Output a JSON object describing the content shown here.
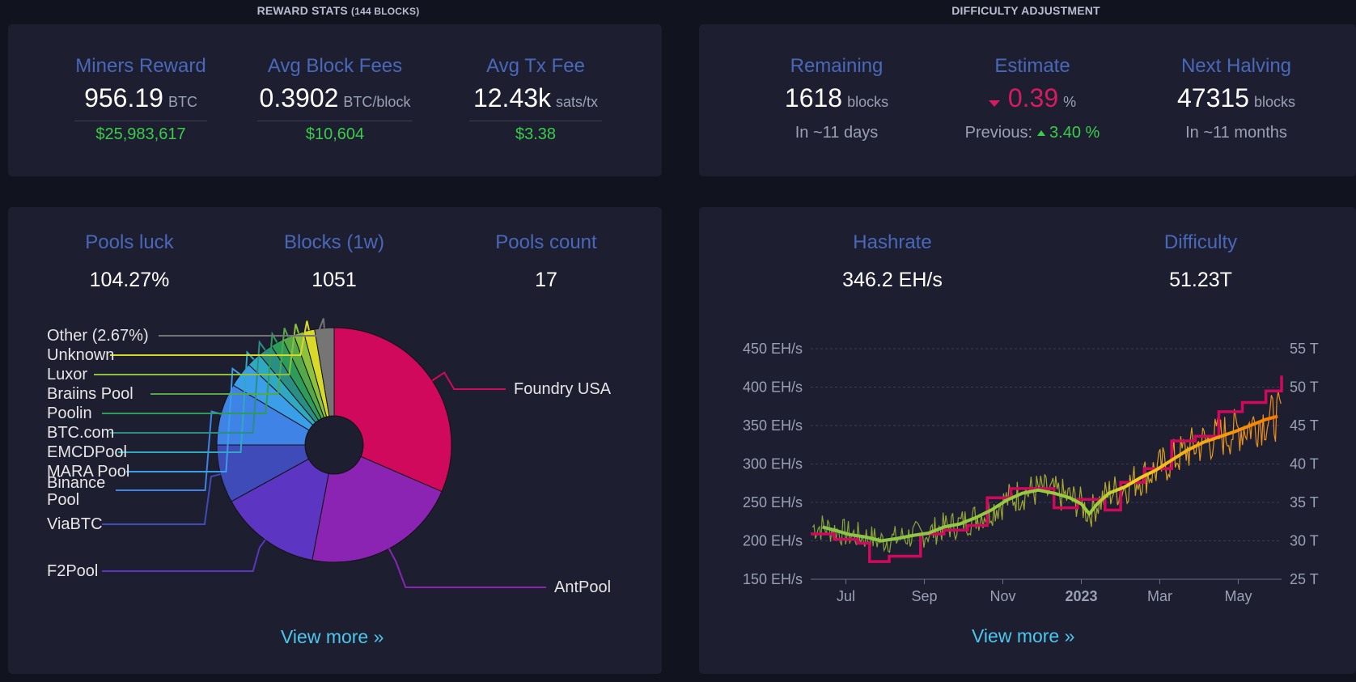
{
  "reward_stats": {
    "title": "REWARD STATS",
    "subtitle": "(144 BLOCKS)",
    "miners_reward": {
      "label": "Miners Reward",
      "value": "956.19",
      "unit": "BTC",
      "fiat": "$25,983,617"
    },
    "avg_block_fees": {
      "label": "Avg Block Fees",
      "value": "0.3902",
      "unit": "BTC/block",
      "fiat": "$10,604"
    },
    "avg_tx_fee": {
      "label": "Avg Tx Fee",
      "value": "12.43k",
      "unit": "sats/tx",
      "fiat": "$3.38"
    }
  },
  "difficulty_adjustment": {
    "title": "DIFFICULTY ADJUSTMENT",
    "remaining": {
      "label": "Remaining",
      "value": "1618",
      "unit": "blocks",
      "sub": "In ~11 days"
    },
    "estimate": {
      "label": "Estimate",
      "value": "0.39",
      "unit": "%",
      "previous_label": "Previous:",
      "previous_value": "3.40",
      "previous_unit": "%"
    },
    "next_halving": {
      "label": "Next Halving",
      "value": "47315",
      "unit": "blocks",
      "sub": "In ~11 months"
    }
  },
  "pools": {
    "luck": {
      "label": "Pools luck",
      "value": "104.27%"
    },
    "blocks": {
      "label": "Blocks (1w)",
      "value": "1051"
    },
    "count": {
      "label": "Pools count",
      "value": "17"
    },
    "view_more": "View more »"
  },
  "mining": {
    "hashrate": {
      "label": "Hashrate",
      "value": "346.2 EH/s"
    },
    "difficulty": {
      "label": "Difficulty",
      "value": "51.23T"
    },
    "view_more": "View more »"
  },
  "chart_data": [
    {
      "type": "pie",
      "variant": "donut",
      "slices": [
        {
          "name": "Foundry USA",
          "percent": 31.5,
          "color": "#d1095d"
        },
        {
          "name": "AntPool",
          "percent": 21.5,
          "color": "#8b24b3"
        },
        {
          "name": "F2Pool",
          "percent": 14.0,
          "color": "#5c35c2"
        },
        {
          "name": "ViaBTC",
          "percent": 8.0,
          "color": "#3f4bb8"
        },
        {
          "name": "Binance Pool",
          "percent": 8.5,
          "color": "#3f83e6"
        },
        {
          "name": "MARA Pool",
          "percent": 3.5,
          "color": "#3a9ee9"
        },
        {
          "name": "EMCDPool",
          "percent": 2.0,
          "color": "#2fa9c2"
        },
        {
          "name": "BTC.com",
          "percent": 2.0,
          "color": "#2a8f82"
        },
        {
          "name": "Poolin",
          "percent": 1.8,
          "color": "#2d9c5a"
        },
        {
          "name": "Braiins Pool",
          "percent": 1.6,
          "color": "#54a84a"
        },
        {
          "name": "Luxor",
          "percent": 1.4,
          "color": "#8dc13d"
        },
        {
          "name": "Unknown",
          "percent": 1.53,
          "color": "#d9d92a"
        },
        {
          "name": "Other (2.67%)",
          "percent": 2.67,
          "color": "#757575"
        }
      ]
    },
    {
      "type": "line",
      "x_ticks": [
        "Jul",
        "Sep",
        "Nov",
        "2023",
        "Mar",
        "May"
      ],
      "y_left_ticks": [
        "150 EH/s",
        "200 EH/s",
        "250 EH/s",
        "300 EH/s",
        "350 EH/s",
        "400 EH/s",
        "450 EH/s"
      ],
      "y_left_range": [
        150,
        450
      ],
      "y_right_ticks": [
        "25 T",
        "30 T",
        "35 T",
        "40 T",
        "45 T",
        "50 T",
        "55 T"
      ],
      "y_right_range": [
        25,
        55
      ],
      "grid": true,
      "x_range": [
        0,
        12
      ],
      "series": [
        {
          "axis": "left",
          "values": [
            [
              0.3,
              218
            ],
            [
              0.6,
              214
            ],
            [
              1.0,
              208
            ],
            [
              1.4,
              205
            ],
            [
              1.8,
              200
            ],
            [
              2.2,
              203
            ],
            [
              2.6,
              207
            ],
            [
              3.0,
              210
            ],
            [
              3.4,
              218
            ],
            [
              3.8,
              222
            ],
            [
              4.2,
              230
            ],
            [
              4.6,
              240
            ],
            [
              5.0,
              253
            ],
            [
              5.4,
              262
            ],
            [
              5.8,
              266
            ],
            [
              6.2,
              262
            ],
            [
              6.6,
              256
            ],
            [
              6.9,
              248
            ],
            [
              7.1,
              235
            ],
            [
              7.3,
              248
            ],
            [
              7.6,
              262
            ],
            [
              8.0,
              270
            ],
            [
              8.4,
              282
            ],
            [
              8.8,
              292
            ],
            [
              9.2,
              305
            ],
            [
              9.6,
              318
            ],
            [
              10.0,
              328
            ],
            [
              10.4,
              335
            ],
            [
              10.8,
              342
            ],
            [
              11.2,
              350
            ],
            [
              11.6,
              358
            ],
            [
              11.9,
              362
            ]
          ]
        },
        {
          "axis": "right",
          "values": [
            [
              0.0,
              30.9
            ],
            [
              0.6,
              30.9
            ],
            [
              0.6,
              30.2
            ],
            [
              1.2,
              30.2
            ],
            [
              1.2,
              29.7
            ],
            [
              1.5,
              29.7
            ],
            [
              1.5,
              27.3
            ],
            [
              2.0,
              27.3
            ],
            [
              2.0,
              28.0
            ],
            [
              2.8,
              28.0
            ],
            [
              2.8,
              30.9
            ],
            [
              3.4,
              30.9
            ],
            [
              3.4,
              31.4
            ],
            [
              4.0,
              31.4
            ],
            [
              4.0,
              32.0
            ],
            [
              4.5,
              32.0
            ],
            [
              4.5,
              35.6
            ],
            [
              5.1,
              35.6
            ],
            [
              5.1,
              36.8
            ],
            [
              6.2,
              36.8
            ],
            [
              6.2,
              34.3
            ],
            [
              6.8,
              34.3
            ],
            [
              6.8,
              35.4
            ],
            [
              7.5,
              35.4
            ],
            [
              7.5,
              34.0
            ],
            [
              7.9,
              34.0
            ],
            [
              7.9,
              37.6
            ],
            [
              8.5,
              37.6
            ],
            [
              8.5,
              39.4
            ],
            [
              9.2,
              39.4
            ],
            [
              9.2,
              43.0
            ],
            [
              9.8,
              43.0
            ],
            [
              9.8,
              43.6
            ],
            [
              10.4,
              43.6
            ],
            [
              10.4,
              46.8
            ],
            [
              11.0,
              46.8
            ],
            [
              11.0,
              48.0
            ],
            [
              11.6,
              48.0
            ],
            [
              11.6,
              49.5
            ],
            [
              12.0,
              49.5
            ],
            [
              12.0,
              51.5
            ]
          ]
        }
      ]
    }
  ]
}
